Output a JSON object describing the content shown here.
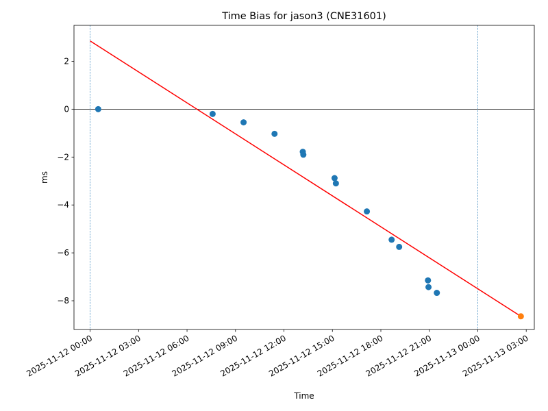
{
  "chart_data": {
    "type": "scatter",
    "title": "Time Bias for jason3 (CNE31601)",
    "xlabel": "Time",
    "ylabel": "ms",
    "x_axis_type": "datetime",
    "xlim": [
      "2025-11-11 23:00",
      "2025-11-13 03:30"
    ],
    "ylim": [
      -9.2,
      3.5
    ],
    "x_ticks": [
      "2025-11-12 00:00",
      "2025-11-12 03:00",
      "2025-11-12 06:00",
      "2025-11-12 09:00",
      "2025-11-12 12:00",
      "2025-11-12 15:00",
      "2025-11-12 18:00",
      "2025-11-12 21:00",
      "2025-11-13 00:00",
      "2025-11-13 03:00"
    ],
    "y_ticks": [
      2,
      0,
      -2,
      -4,
      -6,
      -8
    ],
    "y_tick_labels": [
      "2",
      "0",
      "−2",
      "−4",
      "−6",
      "−8"
    ],
    "grid": false,
    "series": [
      {
        "color": "#1f77b4",
        "points": [
          {
            "x": "2025-11-12 00:30",
            "y": 0.0
          },
          {
            "x": "2025-11-12 07:35",
            "y": -0.2
          },
          {
            "x": "2025-11-12 09:30",
            "y": -0.55
          },
          {
            "x": "2025-11-12 11:25",
            "y": -1.03
          },
          {
            "x": "2025-11-12 13:10",
            "y": -1.78
          },
          {
            "x": "2025-11-12 13:12",
            "y": -1.9
          },
          {
            "x": "2025-11-12 15:08",
            "y": -2.88
          },
          {
            "x": "2025-11-12 15:13",
            "y": -3.1
          },
          {
            "x": "2025-11-12 17:08",
            "y": -4.27
          },
          {
            "x": "2025-11-12 18:40",
            "y": -5.45
          },
          {
            "x": "2025-11-12 19:08",
            "y": -5.75
          },
          {
            "x": "2025-11-12 20:55",
            "y": -7.15
          },
          {
            "x": "2025-11-12 20:57",
            "y": -7.43
          },
          {
            "x": "2025-11-12 21:28",
            "y": -7.67
          }
        ]
      },
      {
        "color": "#ff7f0e",
        "points": [
          {
            "x": "2025-11-13 02:40",
            "y": -8.65
          }
        ]
      }
    ],
    "trend_line": {
      "color": "#ff0000",
      "x": [
        "2025-11-12 00:00",
        "2025-11-13 02:40"
      ],
      "y": [
        2.85,
        -8.65
      ]
    },
    "reference_lines": {
      "horizontal": {
        "y": 0,
        "color": "#000000"
      },
      "vertical": {
        "x": [
          "2025-11-12 00:00",
          "2025-11-13 00:00"
        ],
        "color": "#1f77b4",
        "style": "dashed"
      }
    }
  }
}
